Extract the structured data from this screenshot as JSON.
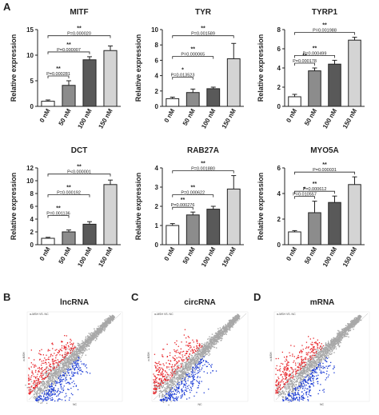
{
  "panels": {
    "A": "A",
    "B": "B",
    "C": "C",
    "D": "D"
  },
  "chart_data": [
    {
      "type": "bar",
      "title": "MITF",
      "ylabel": "Relative expression",
      "xlabel": "",
      "categories": [
        "0 nM",
        "50 nM",
        "100 nM",
        "150 nM"
      ],
      "values": [
        1.0,
        4.1,
        9.1,
        10.9
      ],
      "errors": [
        0.25,
        0.9,
        0.6,
        0.9
      ],
      "ylim": [
        0,
        15
      ],
      "yticks": [
        0,
        5,
        10,
        15
      ],
      "bar_colors": [
        "#ffffff",
        "#8c8c8c",
        "#595959",
        "#d4d4d4"
      ],
      "significance": [
        {
          "from": 0,
          "to": 1,
          "stars": "**",
          "p": "P=0.000281"
        },
        {
          "from": 0,
          "to": 2,
          "stars": "**",
          "p": "P=0.000007"
        },
        {
          "from": 0,
          "to": 3,
          "stars": "**",
          "p": "P=0.000020"
        }
      ]
    },
    {
      "type": "bar",
      "title": "TYR",
      "ylabel": "Relative expression",
      "xlabel": "",
      "categories": [
        "0 nM",
        "50 nM",
        "100 nM",
        "150 nM"
      ],
      "values": [
        1.0,
        1.8,
        2.3,
        6.2
      ],
      "errors": [
        0.2,
        0.45,
        0.2,
        2.0
      ],
      "ylim": [
        0,
        10
      ],
      "yticks": [
        0,
        2,
        4,
        6,
        8,
        10
      ],
      "bar_colors": [
        "#ffffff",
        "#8c8c8c",
        "#595959",
        "#d4d4d4"
      ],
      "significance": [
        {
          "from": 0,
          "to": 1,
          "stars": "*",
          "p": "P=0.013523"
        },
        {
          "from": 0,
          "to": 2,
          "stars": "**",
          "p": "P=0.000065"
        },
        {
          "from": 0,
          "to": 3,
          "stars": "**",
          "p": "P=0.001589"
        }
      ]
    },
    {
      "type": "bar",
      "title": "TYRP1",
      "ylabel": "Relative expression",
      "xlabel": "",
      "categories": [
        "0 nM",
        "50 nM",
        "100 nM",
        "150 nM"
      ],
      "values": [
        1.0,
        3.7,
        4.4,
        6.9
      ],
      "errors": [
        0.25,
        0.3,
        0.4,
        0.3
      ],
      "ylim": [
        0,
        8
      ],
      "yticks": [
        0,
        2,
        4,
        6,
        8
      ],
      "bar_colors": [
        "#ffffff",
        "#8c8c8c",
        "#595959",
        "#d4d4d4"
      ],
      "significance": [
        {
          "from": 0,
          "to": 1,
          "stars": "**",
          "p": "P=0.000178"
        },
        {
          "from": 0,
          "to": 2,
          "stars": "**",
          "p": "P=0.000499"
        },
        {
          "from": 0,
          "to": 3,
          "stars": "**",
          "p": "P=0.001988"
        }
      ]
    },
    {
      "type": "bar",
      "title": "DCT",
      "ylabel": "Relative expression",
      "xlabel": "",
      "categories": [
        "0 nM",
        "50 nM",
        "100 nM",
        "150 nM"
      ],
      "values": [
        1.0,
        2.0,
        3.2,
        9.4
      ],
      "errors": [
        0.15,
        0.3,
        0.4,
        0.7
      ],
      "ylim": [
        0,
        12
      ],
      "yticks": [
        0,
        2,
        4,
        6,
        8,
        10,
        12
      ],
      "bar_colors": [
        "#ffffff",
        "#8c8c8c",
        "#595959",
        "#d4d4d4"
      ],
      "significance": [
        {
          "from": 0,
          "to": 1,
          "stars": "**",
          "p": "P=0.001136"
        },
        {
          "from": 0,
          "to": 2,
          "stars": "**",
          "p": "P=0.000192"
        },
        {
          "from": 0,
          "to": 3,
          "stars": "**",
          "p": "P<0.000001"
        }
      ]
    },
    {
      "type": "bar",
      "title": "RAB27A",
      "ylabel": "Relative expression",
      "xlabel": "",
      "categories": [
        "0 nM",
        "50 nM",
        "100 nM",
        "150 nM"
      ],
      "values": [
        1.0,
        1.55,
        1.85,
        2.9
      ],
      "errors": [
        0.1,
        0.15,
        0.15,
        0.7
      ],
      "ylim": [
        0,
        4
      ],
      "yticks": [
        0,
        1,
        2,
        3,
        4
      ],
      "bar_colors": [
        "#ffffff",
        "#8c8c8c",
        "#595959",
        "#d4d4d4"
      ],
      "significance": [
        {
          "from": 0,
          "to": 1,
          "stars": "**",
          "p": "P=0.000276"
        },
        {
          "from": 0,
          "to": 2,
          "stars": "**",
          "p": "P=0.000622"
        },
        {
          "from": 0,
          "to": 3,
          "stars": "**",
          "p": "P=0.001880"
        }
      ]
    },
    {
      "type": "bar",
      "title": "MYO5A",
      "ylabel": "Relative expression",
      "xlabel": "",
      "categories": [
        "0 nM",
        "50 nM",
        "100 nM",
        "150 nM"
      ],
      "values": [
        1.0,
        2.5,
        3.3,
        4.7
      ],
      "errors": [
        0.1,
        0.9,
        0.5,
        0.6
      ],
      "ylim": [
        0,
        6
      ],
      "yticks": [
        0,
        2,
        4,
        6
      ],
      "bar_colors": [
        "#ffffff",
        "#8c8c8c",
        "#595959",
        "#d4d4d4"
      ],
      "significance": [
        {
          "from": 0,
          "to": 1,
          "stars": "*",
          "p": "P=0.010557"
        },
        {
          "from": 0,
          "to": 2,
          "stars": "**",
          "p": "P=0.000612"
        },
        {
          "from": 0,
          "to": 3,
          "stars": "**",
          "p": "P=0.000031"
        }
      ]
    },
    {
      "type": "scatter",
      "title": "lncRNA",
      "legend": "α-MSH VS. NC",
      "xlabel": "NC",
      "ylabel": "α-MSH",
      "groups": [
        {
          "name": "up",
          "color": "#e8262b"
        },
        {
          "name": "not significant",
          "color": "#a8a8a8"
        },
        {
          "name": "down",
          "color": "#1f3fd6"
        }
      ]
    },
    {
      "type": "scatter",
      "title": "circRNA",
      "legend": "α-MSH VS. NC",
      "xlabel": "NC",
      "ylabel": "α-MSH",
      "groups": [
        {
          "name": "up",
          "color": "#e8262b"
        },
        {
          "name": "not significant",
          "color": "#a8a8a8"
        },
        {
          "name": "down",
          "color": "#1f3fd6"
        }
      ]
    },
    {
      "type": "scatter",
      "title": "mRNA",
      "legend": "α-MSH VS. NC",
      "xlabel": "NC",
      "ylabel": "α-MSH",
      "groups": [
        {
          "name": "up",
          "color": "#e8262b"
        },
        {
          "name": "not significant",
          "color": "#a8a8a8"
        },
        {
          "name": "down",
          "color": "#1f3fd6"
        }
      ]
    }
  ]
}
